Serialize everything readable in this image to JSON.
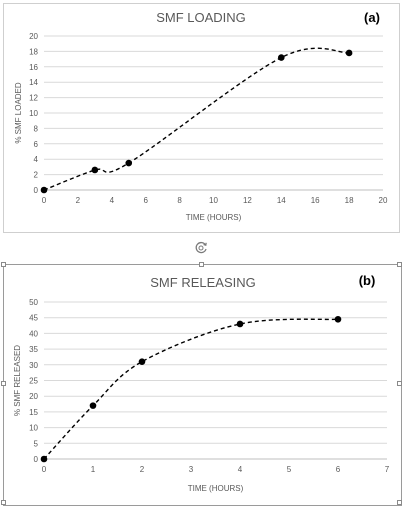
{
  "chart_data": [
    {
      "type": "line",
      "title": "SMF LOADING",
      "panel_label": "(a)",
      "xlabel": "TIME (HOURS)",
      "ylabel": "% SMF LOADED",
      "xlim": [
        0,
        20
      ],
      "ylim": [
        0,
        20
      ],
      "xticks": [
        0,
        2,
        4,
        6,
        8,
        10,
        12,
        14,
        16,
        18,
        20
      ],
      "yticks": [
        0,
        2,
        4,
        6,
        8,
        10,
        12,
        14,
        16,
        18,
        20
      ],
      "grid": "horizontal",
      "line_style": "dashed smooth",
      "marker": "filled circle",
      "x": [
        0,
        3,
        5,
        14,
        18
      ],
      "y": [
        0,
        2.6,
        3.5,
        17.2,
        17.8
      ]
    },
    {
      "type": "line",
      "title": "SMF RELEASING",
      "panel_label": "(b)",
      "xlabel": "TIME (HOURS)",
      "ylabel": "% SMF RELEASED",
      "xlim": [
        0,
        7
      ],
      "ylim": [
        0,
        50
      ],
      "xticks": [
        0,
        1,
        2,
        3,
        4,
        5,
        6,
        7
      ],
      "yticks": [
        0,
        5,
        10,
        15,
        20,
        25,
        30,
        35,
        40,
        45,
        50
      ],
      "grid": "horizontal",
      "line_style": "dashed smooth",
      "marker": "filled circle",
      "x": [
        0,
        1,
        2,
        4,
        6
      ],
      "y": [
        0,
        17,
        31,
        43,
        44.5
      ]
    }
  ],
  "colors": {
    "series": "#000000",
    "grid": "#d9d9d9",
    "axis_text": "#595959",
    "title_text": "#595959",
    "panel_label": "#000000"
  }
}
